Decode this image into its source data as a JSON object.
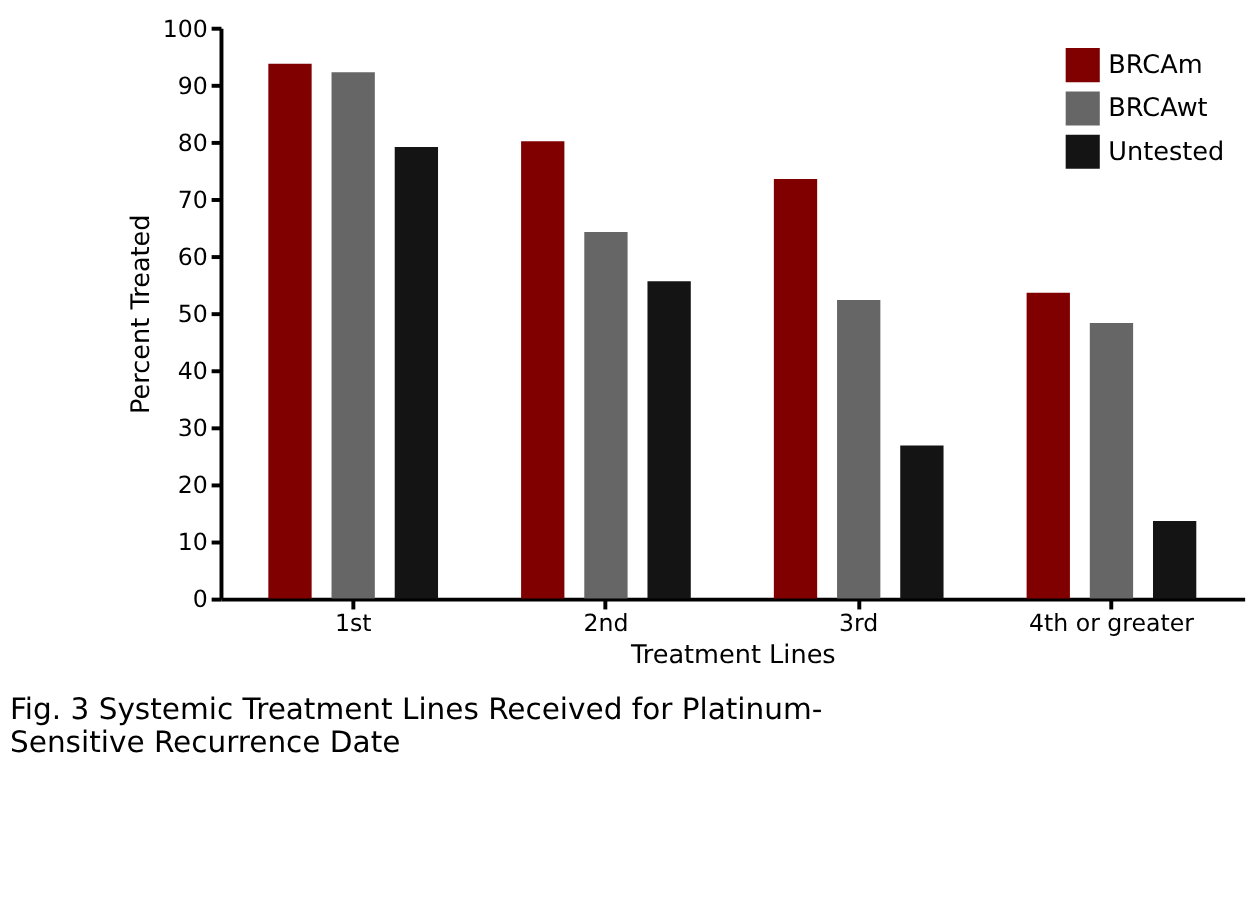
{
  "chart_data": {
    "type": "bar",
    "xlabel": "Treatment Lines",
    "ylabel": "Percent Treated",
    "categories": [
      "1st",
      "2nd",
      "3rd",
      "4th or greater"
    ],
    "series": [
      {
        "name": "BRCAm",
        "color": "#800000",
        "values": [
          93.7,
          80.1,
          73.5,
          53.6
        ]
      },
      {
        "name": "BRCAwt",
        "color": "#666666",
        "values": [
          92.2,
          64.2,
          52.3,
          48.3
        ]
      },
      {
        "name": "Untested",
        "color": "#141414",
        "values": [
          79.1,
          55.6,
          26.8,
          13.6
        ]
      }
    ],
    "ylim": [
      0,
      100
    ],
    "yticks": [
      0,
      10,
      20,
      30,
      40,
      50,
      60,
      70,
      80,
      90,
      100
    ],
    "grid": false,
    "legend": "top right",
    "annotations": [
      "Fig. 3 Systemic Treatment Lines Received for Platinum-Sensitive Recurrence Date"
    ]
  }
}
